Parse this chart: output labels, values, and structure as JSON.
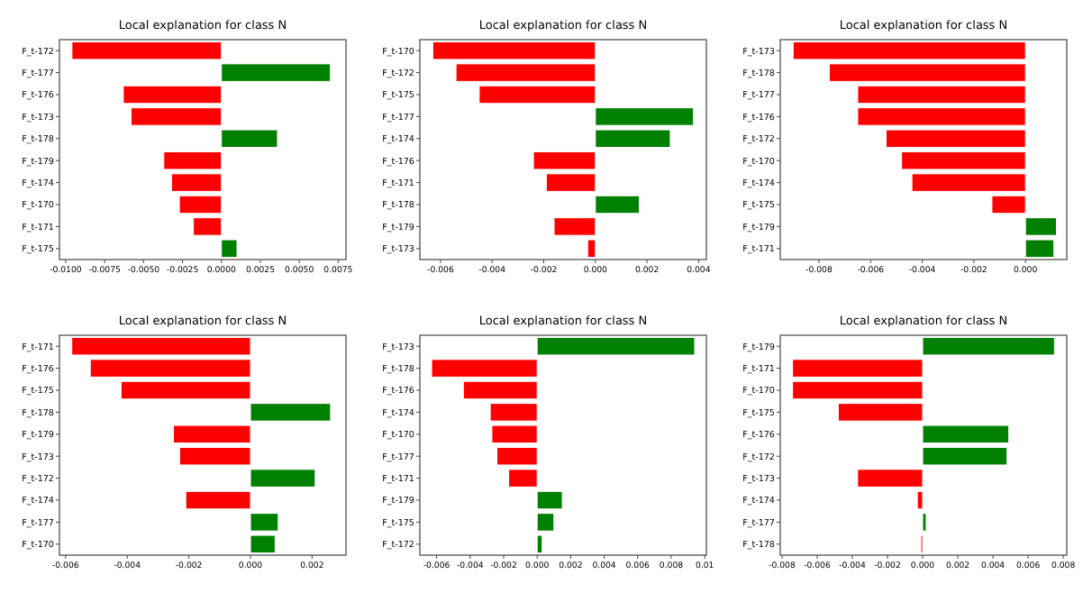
{
  "chart_data": [
    {
      "type": "bar",
      "orientation": "horizontal",
      "title": "Local explanation for class N",
      "categories": [
        "F_t-172",
        "F_t-177",
        "F_t-176",
        "F_t-173",
        "F_t-178",
        "F_t-179",
        "F_t-174",
        "F_t-170",
        "F_t-171",
        "F_t-175"
      ],
      "values": [
        -0.0096,
        0.007,
        -0.0063,
        -0.0058,
        0.0036,
        -0.0037,
        -0.0032,
        -0.0027,
        -0.0018,
        0.001
      ],
      "colors": [
        "#ff0000",
        "#008000",
        "#ff0000",
        "#ff0000",
        "#008000",
        "#ff0000",
        "#ff0000",
        "#ff0000",
        "#ff0000",
        "#008000"
      ],
      "xlim": [
        -0.0104,
        0.008
      ],
      "xticks": [
        {
          "value": -0.01,
          "label": "-0.0100"
        },
        {
          "value": -0.0075,
          "label": "-0.0075"
        },
        {
          "value": -0.005,
          "label": "-0.0050"
        },
        {
          "value": -0.0025,
          "label": "-0.0025"
        },
        {
          "value": 0,
          "label": "0.0000"
        },
        {
          "value": 0.0025,
          "label": "0.0025"
        },
        {
          "value": 0.005,
          "label": "0.0050"
        },
        {
          "value": 0.0075,
          "label": "0.0075"
        }
      ]
    },
    {
      "type": "bar",
      "orientation": "horizontal",
      "title": "Local explanation for class N",
      "categories": [
        "F_t-170",
        "F_t-172",
        "F_t-175",
        "F_t-177",
        "F_t-174",
        "F_t-176",
        "F_t-171",
        "F_t-178",
        "F_t-179",
        "F_t-173"
      ],
      "values": [
        -0.0063,
        -0.0054,
        -0.0045,
        0.0038,
        0.0029,
        -0.0024,
        -0.0019,
        0.0017,
        -0.0016,
        -0.0003
      ],
      "colors": [
        "#ff0000",
        "#ff0000",
        "#ff0000",
        "#008000",
        "#008000",
        "#ff0000",
        "#ff0000",
        "#008000",
        "#ff0000",
        "#ff0000"
      ],
      "xlim": [
        -0.0068,
        0.0043
      ],
      "xticks": [
        {
          "value": -0.006,
          "label": "-0.006"
        },
        {
          "value": -0.004,
          "label": "-0.004"
        },
        {
          "value": -0.002,
          "label": "-0.002"
        },
        {
          "value": 0,
          "label": "0.000"
        },
        {
          "value": 0.002,
          "label": "0.002"
        },
        {
          "value": 0.004,
          "label": "0.004"
        }
      ]
    },
    {
      "type": "bar",
      "orientation": "horizontal",
      "title": "Local explanation for class N",
      "categories": [
        "F_t-173",
        "F_t-178",
        "F_t-177",
        "F_t-176",
        "F_t-172",
        "F_t-170",
        "F_t-174",
        "F_t-175",
        "F_t-179",
        "F_t-171"
      ],
      "values": [
        -0.009,
        -0.0076,
        -0.0065,
        -0.0065,
        -0.0054,
        -0.0048,
        -0.0044,
        -0.0013,
        0.0012,
        0.0011
      ],
      "colors": [
        "#ff0000",
        "#ff0000",
        "#ff0000",
        "#ff0000",
        "#ff0000",
        "#ff0000",
        "#ff0000",
        "#ff0000",
        "#008000",
        "#008000"
      ],
      "xlim": [
        -0.0095,
        0.0016
      ],
      "xticks": [
        {
          "value": -0.008,
          "label": "-0.008"
        },
        {
          "value": -0.006,
          "label": "-0.006"
        },
        {
          "value": -0.004,
          "label": "-0.004"
        },
        {
          "value": -0.002,
          "label": "-0.002"
        },
        {
          "value": 0,
          "label": "0.000"
        }
      ]
    },
    {
      "type": "bar",
      "orientation": "horizontal",
      "title": "Local explanation for class N",
      "categories": [
        "F_t-171",
        "F_t-176",
        "F_t-175",
        "F_t-178",
        "F_t-179",
        "F_t-173",
        "F_t-172",
        "F_t-174",
        "F_t-177",
        "F_t-170"
      ],
      "values": [
        -0.0058,
        -0.0052,
        -0.0042,
        0.0026,
        -0.0025,
        -0.0023,
        0.0021,
        -0.0021,
        0.0009,
        0.0008
      ],
      "colors": [
        "#ff0000",
        "#ff0000",
        "#ff0000",
        "#008000",
        "#ff0000",
        "#ff0000",
        "#008000",
        "#ff0000",
        "#008000",
        "#008000"
      ],
      "xlim": [
        -0.0062,
        0.0031
      ],
      "xticks": [
        {
          "value": -0.006,
          "label": "-0.006"
        },
        {
          "value": -0.004,
          "label": "-0.004"
        },
        {
          "value": -0.002,
          "label": "-0.002"
        },
        {
          "value": 0,
          "label": "0.000"
        },
        {
          "value": 0.002,
          "label": "0.002"
        }
      ]
    },
    {
      "type": "bar",
      "orientation": "horizontal",
      "title": "Local explanation for class N",
      "categories": [
        "F_t-173",
        "F_t-178",
        "F_t-176",
        "F_t-174",
        "F_t-170",
        "F_t-177",
        "F_t-171",
        "F_t-179",
        "F_t-175",
        "F_t-172"
      ],
      "values": [
        0.0094,
        -0.0063,
        -0.0044,
        -0.0028,
        -0.0027,
        -0.0024,
        -0.0017,
        0.0015,
        0.001,
        0.0003
      ],
      "colors": [
        "#008000",
        "#ff0000",
        "#ff0000",
        "#ff0000",
        "#ff0000",
        "#ff0000",
        "#ff0000",
        "#008000",
        "#008000",
        "#008000"
      ],
      "xlim": [
        -0.007,
        0.0101
      ],
      "xticks": [
        {
          "value": -0.006,
          "label": "-0.006"
        },
        {
          "value": -0.004,
          "label": "-0.004"
        },
        {
          "value": -0.002,
          "label": "-0.002"
        },
        {
          "value": 0,
          "label": "0.000"
        },
        {
          "value": 0.002,
          "label": "0.002"
        },
        {
          "value": 0.004,
          "label": "0.004"
        },
        {
          "value": 0.006,
          "label": "0.006"
        },
        {
          "value": 0.008,
          "label": "0.008"
        },
        0.01
      ]
    },
    {
      "type": "bar",
      "orientation": "horizontal",
      "title": "Local explanation for class N",
      "categories": [
        "F_t-179",
        "F_t-171",
        "F_t-170",
        "F_t-175",
        "F_t-176",
        "F_t-172",
        "F_t-173",
        "F_t-174",
        "F_t-177",
        "F_t-178"
      ],
      "values": [
        0.0075,
        -0.0074,
        -0.0074,
        -0.0048,
        0.0049,
        0.0048,
        -0.0037,
        -0.0003,
        0.0002,
        -0.0001
      ],
      "colors": [
        "#008000",
        "#ff0000",
        "#ff0000",
        "#ff0000",
        "#008000",
        "#008000",
        "#ff0000",
        "#ff0000",
        "#008000",
        "#ff0000"
      ],
      "xlim": [
        -0.0081,
        0.0082
      ],
      "xticks": [
        {
          "value": -0.008,
          "label": "-0.008"
        },
        {
          "value": -0.006,
          "label": "-0.006"
        },
        {
          "value": -0.004,
          "label": "-0.004"
        },
        {
          "value": -0.002,
          "label": "-0.002"
        },
        {
          "value": 0,
          "label": "0.000"
        },
        {
          "value": 0.002,
          "label": "0.002"
        },
        {
          "value": 0.004,
          "label": "0.004"
        },
        {
          "value": 0.006,
          "label": "0.006"
        },
        {
          "value": 0.008,
          "label": "0.008"
        }
      ]
    }
  ]
}
